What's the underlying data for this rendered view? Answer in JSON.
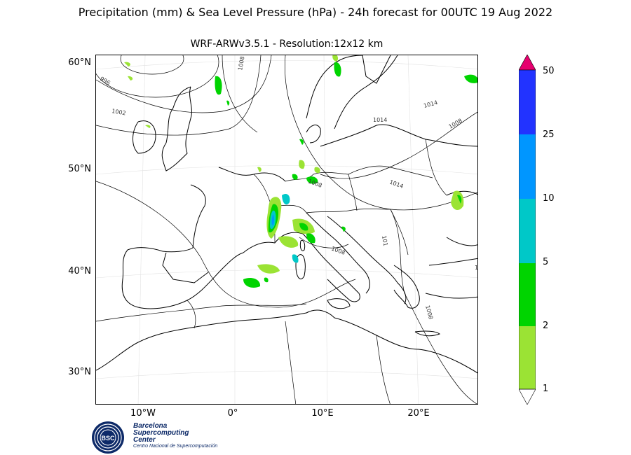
{
  "title": "Precipitation (mm) & Sea Level Pressure (hPa) - 24h forecast for 00UTC 19 Aug 2022",
  "subtitle": "WRF-ARWv3.5.1 - Resolution:12x12 km",
  "latitude_labels": [
    "60°N",
    "50°N",
    "40°N",
    "30°N"
  ],
  "longitude_labels": [
    "10°W",
    "0°",
    "10°E",
    "20°E"
  ],
  "isobar_labels": [
    "996",
    "1002",
    "1008",
    "1014",
    "1008",
    "1014",
    "1008",
    "1008",
    "1014",
    "1008",
    "101",
    "1"
  ],
  "colorbar": {
    "ticks": [
      "1",
      "2",
      "5",
      "10",
      "25",
      "50"
    ],
    "colors": [
      "#9be334",
      "#00d400",
      "#00c8c8",
      "#0096ff",
      "#2233ff",
      "#e6006e"
    ]
  },
  "logo": {
    "line1": "Barcelona",
    "line2": "Supercomputing",
    "line3": "Center",
    "line4": "Centro Nacional de Supercomputación",
    "badge": "BSC"
  }
}
